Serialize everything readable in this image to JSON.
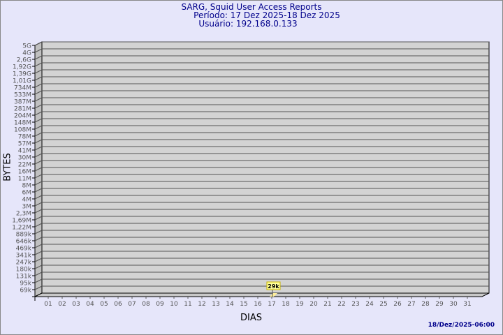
{
  "header": {
    "title": "SARG, Squid User Access Reports",
    "period": "Período: 17 Dez 2025-18 Dez 2025",
    "user": "Usuário: 192.168.0.133"
  },
  "footer": {
    "timestamp": "18/Dez/2025-06:00"
  },
  "colors": {
    "background": "#e6e6fa",
    "plot": "#d3d3d3",
    "bar": "#ffff99",
    "title": "#00008b"
  },
  "chart_data": {
    "type": "bar",
    "xlabel": "DIAS",
    "ylabel": "BYTES",
    "y_ticks": [
      "5G",
      "4G",
      "2,6G",
      "1,92G",
      "1,39G",
      "1,01G",
      "734M",
      "533M",
      "387M",
      "281M",
      "204M",
      "148M",
      "108M",
      "78M",
      "57M",
      "41M",
      "30M",
      "22M",
      "16M",
      "11M",
      "8M",
      "6M",
      "4M",
      "3M",
      "2,3M",
      "1,69M",
      "1,22M",
      "889k",
      "646k",
      "469k",
      "341k",
      "247k",
      "180k",
      "131k",
      "95k",
      "69k"
    ],
    "y_scale": "log",
    "grid": true,
    "categories": [
      "01",
      "02",
      "03",
      "04",
      "05",
      "06",
      "07",
      "08",
      "09",
      "10",
      "11",
      "12",
      "13",
      "14",
      "15",
      "16",
      "17",
      "18",
      "19",
      "20",
      "21",
      "22",
      "23",
      "24",
      "25",
      "26",
      "27",
      "28",
      "29",
      "30",
      "31"
    ],
    "bars": [
      {
        "day": "17",
        "value": 29000,
        "label": "29k"
      }
    ]
  }
}
